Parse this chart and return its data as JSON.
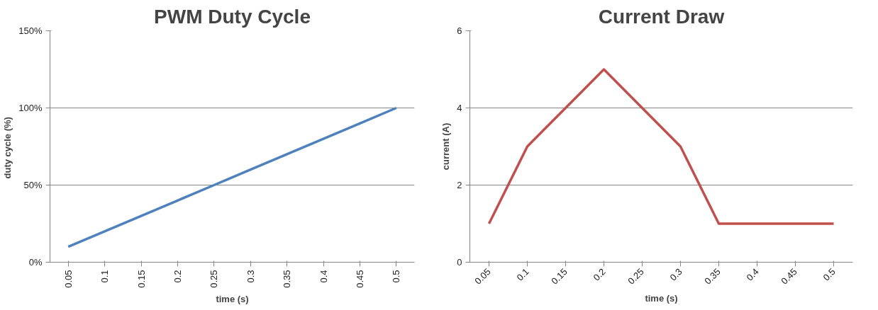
{
  "chart_data": [
    {
      "type": "line",
      "title": "PWM Duty Cycle",
      "xlabel": "time (s)",
      "ylabel": "duty cycle  (%)",
      "categories": [
        "0.05",
        "0.1",
        "0.15",
        "0.2",
        "0.25",
        "0.3",
        "0.35",
        "0.4",
        "0.45",
        "0.5"
      ],
      "series": [
        {
          "color": "#4f81bd",
          "values": [
            10,
            20,
            30,
            40,
            50,
            60,
            70,
            80,
            90,
            100
          ]
        }
      ],
      "ylim": [
        0,
        150
      ],
      "yticks": [
        {
          "value": 0,
          "label": "0%"
        },
        {
          "value": 50,
          "label": "50%"
        },
        {
          "value": 100,
          "label": "100%"
        },
        {
          "value": 150,
          "label": "150%"
        }
      ],
      "grid": "y"
    },
    {
      "type": "line",
      "title": "Current Draw",
      "xlabel": "time (s)",
      "ylabel": "current (A)",
      "categories": [
        "0.05",
        "0.1",
        "0.15",
        "0.2",
        "0.25",
        "0.3",
        "0.35",
        "0.4",
        "0.45",
        "0.5"
      ],
      "series": [
        {
          "color": "#c0504d",
          "values": [
            1,
            3,
            4,
            5,
            4,
            3,
            1,
            1,
            1,
            1
          ]
        }
      ],
      "ylim": [
        0,
        6
      ],
      "yticks": [
        0,
        2,
        4,
        6
      ],
      "grid": "y"
    }
  ]
}
